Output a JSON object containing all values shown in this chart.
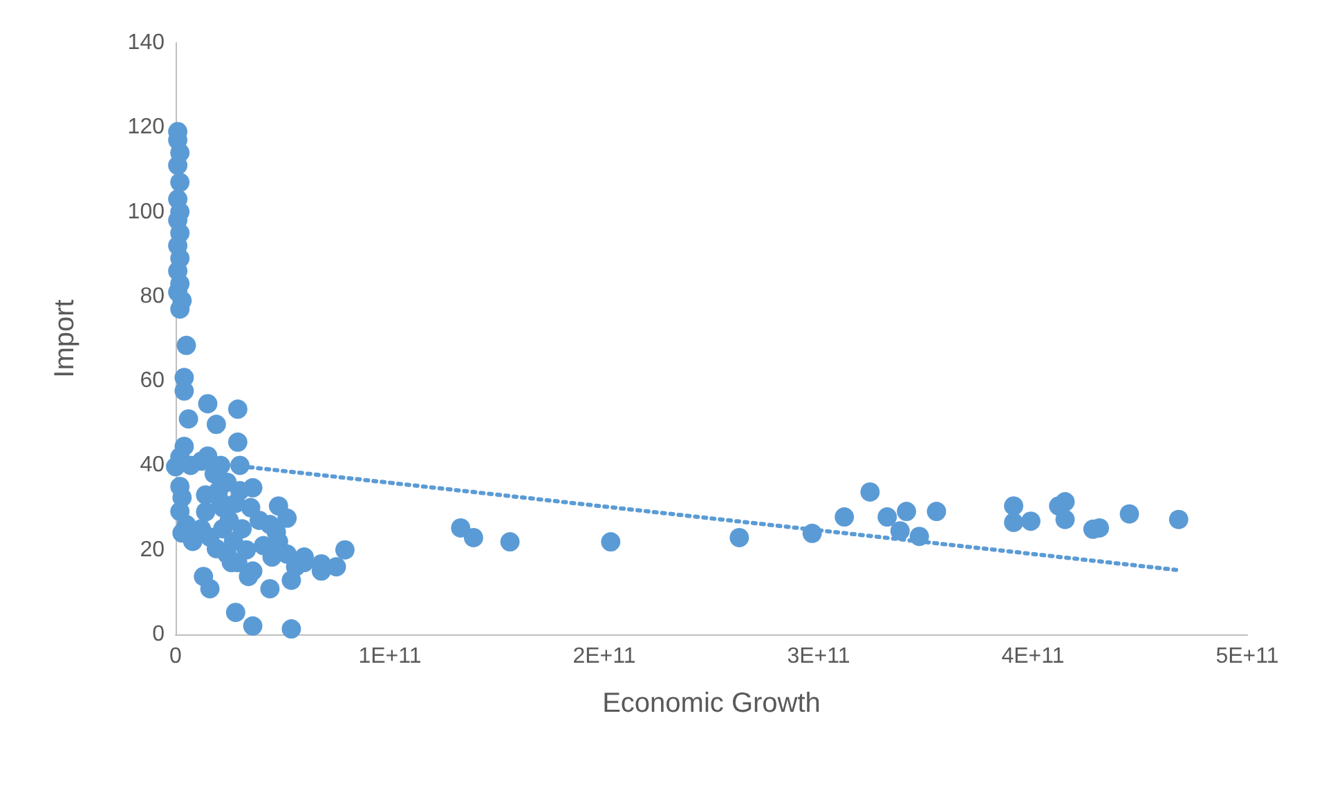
{
  "chart_data": {
    "type": "scatter",
    "xlabel": "Economic Growth",
    "ylabel": "Import",
    "xlim": [
      0,
      500000000000.0
    ],
    "xticks": [
      0,
      {
        "value": 100000000000.0,
        "label": "1E+11"
      },
      {
        "value": 200000000000.0,
        "label": "2E+11"
      },
      {
        "value": 300000000000.0,
        "label": "3E+11"
      },
      {
        "value": 400000000000.0,
        "label": "4E+11"
      },
      {
        "value": 500000000000.0,
        "label": "5E+11"
      }
    ],
    "ylim": [
      0,
      140
    ],
    "yticks": [
      0,
      20,
      40,
      60,
      80,
      100,
      120,
      140
    ],
    "grid": false,
    "marker": "circle",
    "series": [
      {
        "color": "#5b9bd5",
        "x": [
          1000000000.0,
          1000000000.0,
          2000000000.0,
          1000000000.0,
          2000000000.0,
          1000000000.0,
          2000000000.0,
          1000000000.0,
          2000000000.0,
          1000000000.0,
          2000000000.0,
          1000000000.0,
          2000000000.0,
          1000000000.0,
          3000000000.0,
          2000000000.0,
          5000000000.0,
          4000000000.0,
          4000000000.0,
          6000000000.0,
          4000000000.0,
          0,
          15000000000.0,
          29000000000.0,
          19000000000.0,
          29000000000.0,
          30000000000.0,
          36000000000.0,
          48000000000.0,
          52000000000.0,
          79000000000.0,
          75000000000.0,
          68000000000.0,
          60000000000.0,
          54000000000.0,
          44000000000.0,
          34000000000.0,
          16000000000.0,
          13000000000.0,
          28000000000.0,
          36000000000.0,
          54000000000.0,
          19000000000.0,
          26000000000.0,
          45000000000.0,
          21000000000.0,
          8000000000.0,
          15000000000.0,
          21000000000.0,
          47000000000.0,
          3000000000.0,
          2000000000.0,
          60000000000.0,
          68000000000.0,
          2000000000.0,
          7000000000.0,
          12000000000.0,
          14000000000.0,
          18000000000.0,
          20000000000.0,
          22000000000.0,
          24000000000.0,
          25000000000.0,
          28000000000.0,
          30000000000.0,
          31000000000.0,
          35000000000.0,
          39000000000.0,
          41000000000.0,
          2000000000.0,
          12000000000.0,
          14000000000.0,
          16000000000.0,
          22000000000.0,
          24000000000.0,
          27000000000.0,
          29000000000.0,
          33000000000.0,
          36000000000.0,
          44000000000.0,
          48000000000.0,
          52000000000.0,
          56000000000.0,
          5000000000.0,
          3000000000.0,
          133000000000.0,
          139000000000.0,
          156000000000.0,
          203000000000.0,
          263000000000.0,
          297000000000.0,
          312000000000.0,
          324000000000.0,
          332000000000.0,
          338000000000.0,
          341000000000.0,
          347000000000.0,
          355000000000.0,
          391000000000.0,
          391000000000.0,
          399000000000.0,
          412000000000.0,
          415000000000.0,
          415000000000.0,
          428000000000.0,
          431000000000.0,
          445000000000.0,
          468000000000.0
        ],
        "values": [
          119,
          117,
          114,
          111,
          107,
          103,
          100,
          98,
          95,
          92,
          89,
          86,
          83,
          81,
          79,
          77,
          68.4,
          60.8,
          57.6,
          51,
          44.5,
          39.7,
          54.6,
          53.3,
          49.7,
          45.5,
          40,
          34.7,
          30.4,
          27.5,
          20,
          16,
          15,
          18.3,
          12.8,
          10.8,
          13.7,
          10.8,
          13.7,
          5.2,
          2,
          1.3,
          20.3,
          17,
          18.3,
          31.4,
          22,
          42.2,
          40,
          24.2,
          32.4,
          29.1,
          17,
          16.7,
          42,
          40,
          41,
          33,
          38,
          34,
          30,
          36,
          27,
          31,
          34,
          25,
          30,
          27,
          21,
          35,
          25,
          29,
          23,
          25,
          19,
          22,
          17,
          20,
          15,
          26,
          22,
          19,
          16,
          26,
          24,
          25.2,
          22.9,
          21.9,
          21.9,
          22.9,
          23.9,
          27.8,
          33.7,
          27.8,
          24.5,
          29.1,
          23.2,
          29.1,
          30.4,
          26.5,
          26.8,
          30.4,
          31.4,
          27.2,
          24.9,
          25.2,
          28.5,
          27.2
        ]
      },
      {
        "type": "line",
        "color": "#5b9bd5",
        "line_style": "dotted",
        "marker": "none",
        "x": [
          0,
          468000000000.0
        ],
        "values": [
          41.5,
          15.2
        ]
      }
    ]
  }
}
